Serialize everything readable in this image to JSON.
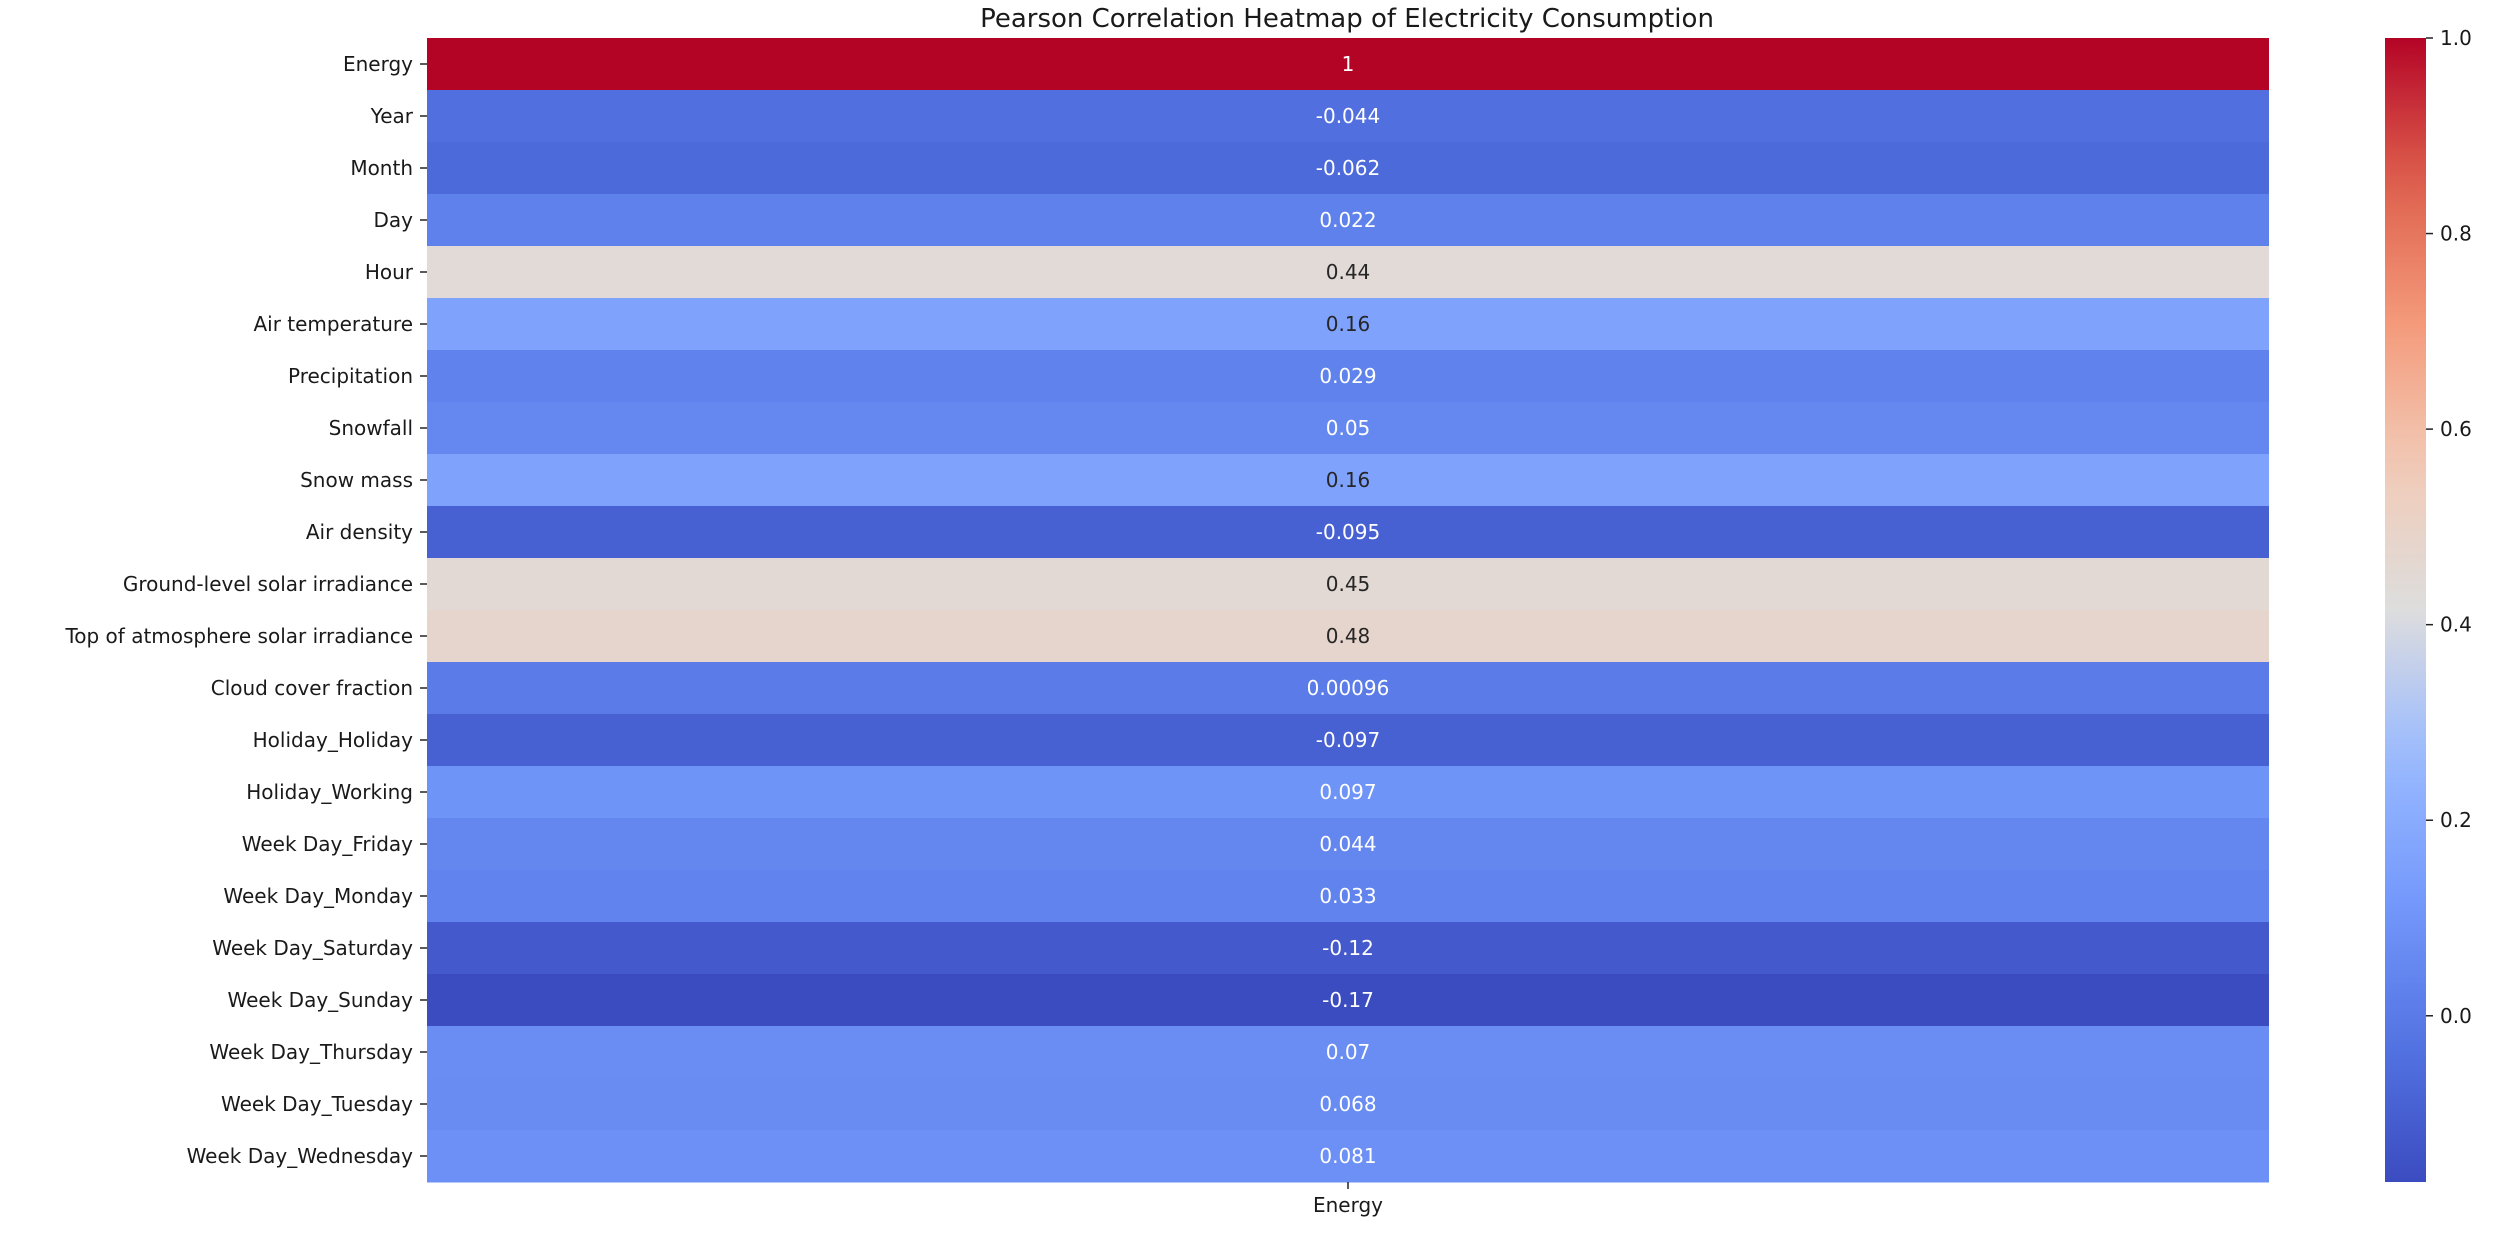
{
  "chart_data": {
    "type": "heatmap",
    "title": "Pearson Correlation Heatmap of Electricity Consumption",
    "columns": [
      "Energy"
    ],
    "rows": [
      "Energy",
      "Year",
      "Month",
      "Day",
      "Hour",
      "Air temperature",
      "Precipitation",
      "Snowfall",
      "Snow mass",
      "Air density",
      "Ground-level solar irradiance",
      "Top of atmosphere solar irradiance",
      "Cloud cover fraction",
      "Holiday_Holiday",
      "Holiday_Working",
      "Week Day_Friday",
      "Week Day_Monday",
      "Week Day_Saturday",
      "Week Day_Sunday",
      "Week Day_Thursday",
      "Week Day_Tuesday",
      "Week Day_Wednesday"
    ],
    "values": [
      1,
      -0.044,
      -0.062,
      0.022,
      0.44,
      0.16,
      0.029,
      0.05,
      0.16,
      -0.095,
      0.45,
      0.48,
      0.00096,
      -0.097,
      0.097,
      0.044,
      0.033,
      -0.12,
      -0.17,
      0.07,
      0.068,
      0.081
    ],
    "value_labels": [
      "1",
      "-0.044",
      "-0.062",
      "0.022",
      "0.44",
      "0.16",
      "0.029",
      "0.05",
      "0.16",
      "-0.095",
      "0.45",
      "0.48",
      "0.00096",
      "-0.097",
      "0.097",
      "0.044",
      "0.033",
      "-0.12",
      "-0.17",
      "0.07",
      "0.068",
      "0.081"
    ],
    "colormap": "coolwarm",
    "vmin": -0.17,
    "vmax": 1.0,
    "colorbar": {
      "ticks": [
        0.0,
        0.2,
        0.4,
        0.6,
        0.8,
        1.0
      ],
      "tick_labels": [
        "0.0",
        "0.2",
        "0.4",
        "0.6",
        "0.8",
        "1.0"
      ],
      "placement": "right"
    },
    "xlabel": "",
    "ylabel": "",
    "annotations": true,
    "grid": false
  }
}
